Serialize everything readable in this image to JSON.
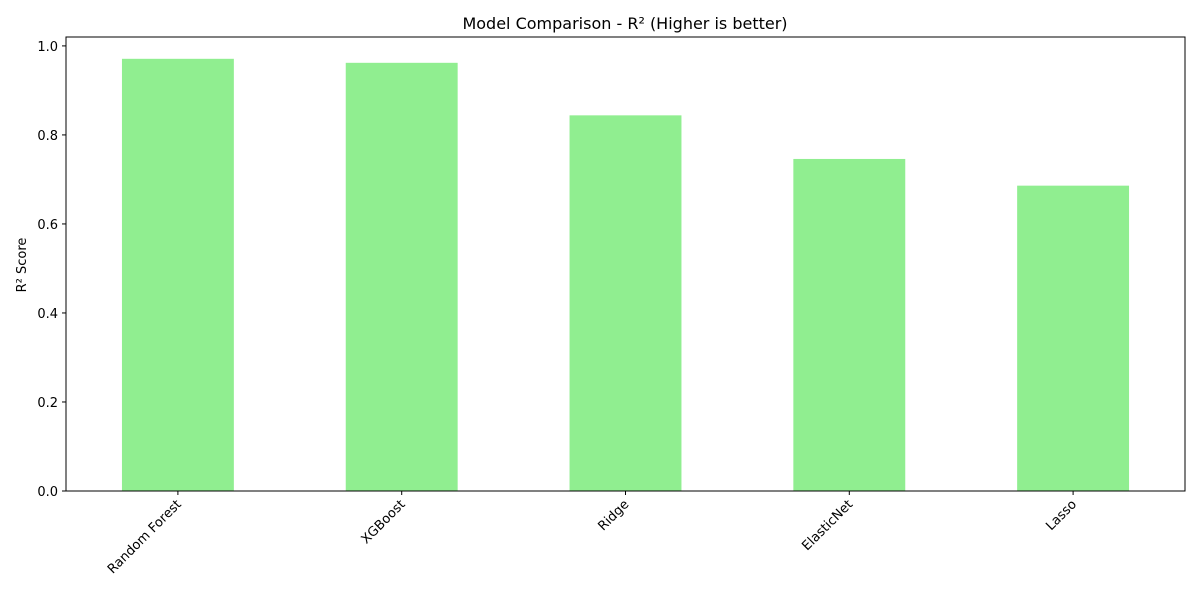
{
  "chart_data": {
    "type": "bar",
    "title": "Model Comparison - R² (Higher is better)",
    "xlabel": "",
    "ylabel": "R² Score",
    "categories": [
      "Random Forest",
      "XGBoost",
      "Ridge",
      "ElasticNet",
      "Lasso"
    ],
    "values": [
      0.971,
      0.962,
      0.844,
      0.746,
      0.686
    ],
    "ylim": [
      0,
      1.02
    ],
    "yticks": [
      0.0,
      0.2,
      0.4,
      0.6,
      0.8,
      1.0
    ],
    "ytick_labels": [
      "0.0",
      "0.2",
      "0.4",
      "0.6",
      "0.8",
      "1.0"
    ],
    "bar_color": "#90ee90",
    "grid": false,
    "legend": "none",
    "xtick_rotation_deg": 45
  }
}
